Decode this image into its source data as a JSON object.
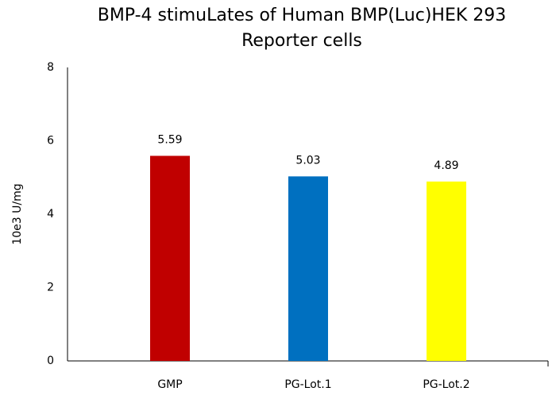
{
  "chart_data": {
    "type": "bar",
    "title": [
      "BMP-4 stimuLates of Human BMP(Luc)HEK 293",
      "Reporter cells"
    ],
    "y_label": "10e3 U/mg",
    "categories": [
      "GMP",
      "PG-Lot.1",
      "PG-Lot.2"
    ],
    "values": [
      5.59,
      5.03,
      4.89
    ],
    "colors": [
      "#c00000",
      "#0070c0",
      "#ffff00"
    ],
    "ylim": [
      0,
      8
    ],
    "yticks": [
      0,
      2,
      4,
      6,
      8
    ],
    "grid": false
  }
}
